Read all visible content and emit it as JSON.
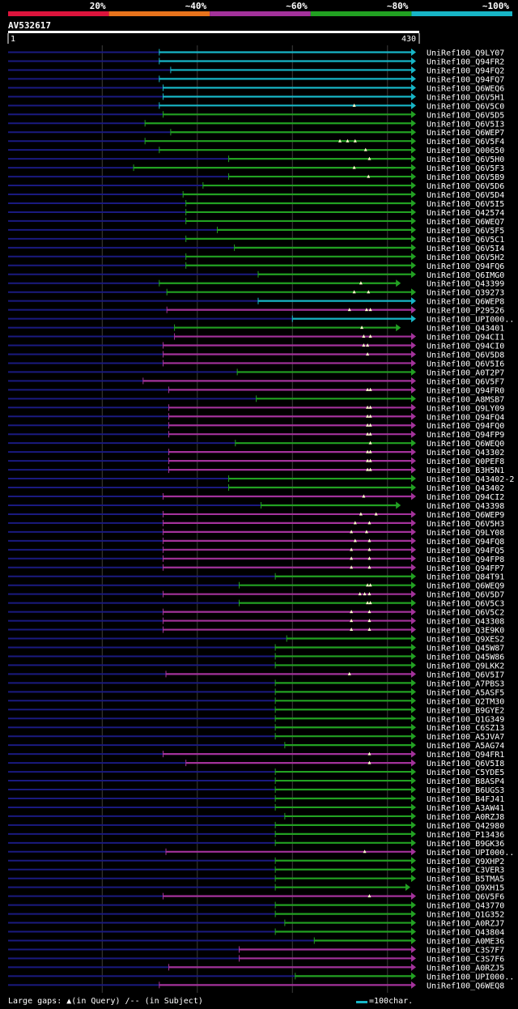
{
  "colors": {
    "background": "#000000",
    "bin20": "#dc143c",
    "bin40": "#e8731c",
    "bin60": "#a3329b",
    "bin80": "#22a122",
    "bin100": "#17b5c6",
    "query_line": "#1a1a80",
    "grid": "#3c3c3c",
    "gap_mark": "#ffffcc"
  },
  "legend": [
    {
      "label": "20%",
      "color_key": "bin20"
    },
    {
      "label": "~40%",
      "color_key": "bin40"
    },
    {
      "label": "~60%",
      "color_key": "bin60"
    },
    {
      "label": "~80%",
      "color_key": "bin80"
    },
    {
      "label": "~100%",
      "color_key": "bin100"
    }
  ],
  "query": {
    "name": "AV532617",
    "start": "1",
    "end": "430",
    "length": 430
  },
  "footer": {
    "gaps_label": "Large gaps:",
    "gap_query": "▲(in Query)",
    "gap_subject": "/-- (in Subject)",
    "scale_label": "=100char."
  },
  "hits": [
    {
      "id": "UniRef100_Q9LY07",
      "c": "bin100",
      "s": 160,
      "e": 430,
      "g": []
    },
    {
      "id": "UniRef100_Q94FR2",
      "c": "bin100",
      "s": 160,
      "e": 430,
      "g": []
    },
    {
      "id": "UniRef100_Q94FQ2",
      "c": "bin100",
      "s": 172,
      "e": 430,
      "g": []
    },
    {
      "id": "UniRef100_Q94FQ7",
      "c": "bin100",
      "s": 160,
      "e": 430,
      "g": []
    },
    {
      "id": "UniRef100_Q6WEQ6",
      "c": "bin100",
      "s": 164,
      "e": 430,
      "g": []
    },
    {
      "id": "UniRef100_Q6V5H1",
      "c": "bin100",
      "s": 164,
      "e": 430,
      "g": []
    },
    {
      "id": "UniRef100_Q6V5C0",
      "c": "bin100",
      "s": 160,
      "e": 430,
      "g": [
        365
      ]
    },
    {
      "id": "UniRef100_Q6V5D5",
      "c": "bin80",
      "s": 164,
      "e": 430,
      "g": []
    },
    {
      "id": "UniRef100_Q6V5I3",
      "c": "bin80",
      "s": 145,
      "e": 430,
      "g": []
    },
    {
      "id": "UniRef100_Q6WEP7",
      "c": "bin80",
      "s": 172,
      "e": 430,
      "g": []
    },
    {
      "id": "UniRef100_Q6V5F4",
      "c": "bin80",
      "s": 145,
      "e": 430,
      "g": [
        350,
        358,
        366
      ]
    },
    {
      "id": "UniRef100_Q00650",
      "c": "bin80",
      "s": 160,
      "e": 430,
      "g": [
        377
      ]
    },
    {
      "id": "UniRef100_Q6V5H0",
      "c": "bin80",
      "s": 233,
      "e": 430,
      "g": [
        381
      ]
    },
    {
      "id": "UniRef100_Q6V5F3",
      "c": "bin80",
      "s": 133,
      "e": 430,
      "g": [
        365
      ]
    },
    {
      "id": "UniRef100_Q6V5B9",
      "c": "bin80",
      "s": 233,
      "e": 430,
      "g": [
        380
      ]
    },
    {
      "id": "UniRef100_Q6V5D6",
      "c": "bin80",
      "s": 206,
      "e": 430,
      "g": []
    },
    {
      "id": "UniRef100_Q6V5D4",
      "c": "bin80",
      "s": 185,
      "e": 430,
      "g": []
    },
    {
      "id": "UniRef100_Q6V5I5",
      "c": "bin80",
      "s": 188,
      "e": 430,
      "g": []
    },
    {
      "id": "UniRef100_Q42574",
      "c": "bin80",
      "s": 188,
      "e": 430,
      "g": []
    },
    {
      "id": "UniRef100_Q6WEQ7",
      "c": "bin80",
      "s": 188,
      "e": 430,
      "g": []
    },
    {
      "id": "UniRef100_Q6V5F5",
      "c": "bin80",
      "s": 221,
      "e": 430,
      "g": []
    },
    {
      "id": "UniRef100_Q6V5C1",
      "c": "bin80",
      "s": 188,
      "e": 430,
      "g": []
    },
    {
      "id": "UniRef100_Q6V5I4",
      "c": "bin80",
      "s": 239,
      "e": 430,
      "g": []
    },
    {
      "id": "UniRef100_Q6V5H2",
      "c": "bin80",
      "s": 188,
      "e": 430,
      "g": []
    },
    {
      "id": "UniRef100_Q94FQ6",
      "c": "bin80",
      "s": 188,
      "e": 430,
      "g": []
    },
    {
      "id": "UniRef100_Q6IMG0",
      "c": "bin80",
      "s": 264,
      "e": 430,
      "g": []
    },
    {
      "id": "UniRef100_Q43399",
      "c": "bin80",
      "s": 160,
      "e": 414,
      "g": [
        372
      ]
    },
    {
      "id": "UniRef100_Q39273",
      "c": "bin80",
      "s": 168,
      "e": 430,
      "g": [
        365,
        380
      ]
    },
    {
      "id": "UniRef100_Q6WEP8",
      "c": "bin100",
      "s": 264,
      "e": 430,
      "g": []
    },
    {
      "id": "UniRef100_P29526",
      "c": "bin60",
      "s": 168,
      "e": 430,
      "g": [
        360,
        378,
        382
      ]
    },
    {
      "id": "UniRef100_UPI000..",
      "c": "bin100",
      "s": 300,
      "e": 430,
      "g": []
    },
    {
      "id": "UniRef100_Q43401",
      "c": "bin80",
      "s": 176,
      "e": 414,
      "g": [
        373
      ]
    },
    {
      "id": "UniRef100_Q94CI1",
      "c": "bin60",
      "s": 176,
      "e": 430,
      "g": [
        375,
        382
      ]
    },
    {
      "id": "UniRef100_Q94CI0",
      "c": "bin60",
      "s": 164,
      "e": 430,
      "g": [
        375,
        379
      ]
    },
    {
      "id": "UniRef100_Q6V5D8",
      "c": "bin60",
      "s": 164,
      "e": 430,
      "g": [
        379
      ]
    },
    {
      "id": "UniRef100_Q6V5I6",
      "c": "bin60",
      "s": 164,
      "e": 430,
      "g": []
    },
    {
      "id": "UniRef100_A0T2P7",
      "c": "bin80",
      "s": 242,
      "e": 430,
      "g": []
    },
    {
      "id": "UniRef100_Q6V5F7",
      "c": "bin60",
      "s": 143,
      "e": 430,
      "g": []
    },
    {
      "id": "UniRef100_Q94FR0",
      "c": "bin60",
      "s": 170,
      "e": 430,
      "g": [
        379,
        382
      ]
    },
    {
      "id": "UniRef100_A8MSB7",
      "c": "bin80",
      "s": 262,
      "e": 430,
      "g": []
    },
    {
      "id": "UniRef100_Q9LY09",
      "c": "bin60",
      "s": 170,
      "e": 430,
      "g": [
        379,
        382
      ]
    },
    {
      "id": "UniRef100_Q94FQ4",
      "c": "bin60",
      "s": 170,
      "e": 430,
      "g": [
        379,
        382
      ]
    },
    {
      "id": "UniRef100_Q94FQ0",
      "c": "bin60",
      "s": 170,
      "e": 430,
      "g": [
        379,
        382
      ]
    },
    {
      "id": "UniRef100_Q94FP9",
      "c": "bin60",
      "s": 170,
      "e": 430,
      "g": [
        379,
        382
      ]
    },
    {
      "id": "UniRef100_Q6WEQ0",
      "c": "bin80",
      "s": 240,
      "e": 430,
      "g": [
        382
      ]
    },
    {
      "id": "UniRef100_Q43302",
      "c": "bin60",
      "s": 170,
      "e": 430,
      "g": [
        379,
        382
      ]
    },
    {
      "id": "UniRef100_Q0PEF8",
      "c": "bin60",
      "s": 170,
      "e": 430,
      "g": [
        379,
        382
      ]
    },
    {
      "id": "UniRef100_B3H5N1",
      "c": "bin60",
      "s": 170,
      "e": 430,
      "g": [
        379,
        382
      ]
    },
    {
      "id": "UniRef100_Q43402-2",
      "c": "bin80",
      "s": 233,
      "e": 430,
      "g": []
    },
    {
      "id": "UniRef100_Q43402",
      "c": "bin80",
      "s": 233,
      "e": 430,
      "g": []
    },
    {
      "id": "UniRef100_Q94CI2",
      "c": "bin60",
      "s": 164,
      "e": 430,
      "g": [
        375
      ]
    },
    {
      "id": "UniRef100_Q43398",
      "c": "bin80",
      "s": 267,
      "e": 414,
      "g": []
    },
    {
      "id": "UniRef100_Q6WEP9",
      "c": "bin60",
      "s": 164,
      "e": 430,
      "g": [
        372,
        388
      ]
    },
    {
      "id": "UniRef100_Q6V5H3",
      "c": "bin60",
      "s": 164,
      "e": 430,
      "g": [
        366,
        381
      ]
    },
    {
      "id": "UniRef100_Q9LY08",
      "c": "bin60",
      "s": 164,
      "e": 430,
      "g": [
        362,
        378
      ]
    },
    {
      "id": "UniRef100_Q94FQ8",
      "c": "bin60",
      "s": 164,
      "e": 430,
      "g": [
        366,
        381
      ]
    },
    {
      "id": "UniRef100_Q94FQ5",
      "c": "bin60",
      "s": 164,
      "e": 430,
      "g": [
        362,
        381
      ]
    },
    {
      "id": "UniRef100_Q94FP8",
      "c": "bin60",
      "s": 164,
      "e": 430,
      "g": [
        362,
        381
      ]
    },
    {
      "id": "UniRef100_Q94FP7",
      "c": "bin60",
      "s": 164,
      "e": 430,
      "g": [
        362,
        381
      ]
    },
    {
      "id": "UniRef100_Q84T91",
      "c": "bin80",
      "s": 282,
      "e": 430,
      "g": []
    },
    {
      "id": "UniRef100_Q6WEQ9",
      "c": "bin80",
      "s": 244,
      "e": 430,
      "g": [
        379,
        382
      ]
    },
    {
      "id": "UniRef100_Q6V5D7",
      "c": "bin60",
      "s": 164,
      "e": 430,
      "g": [
        371,
        376,
        381
      ]
    },
    {
      "id": "UniRef100_Q6V5C3",
      "c": "bin80",
      "s": 244,
      "e": 430,
      "g": [
        379,
        382
      ]
    },
    {
      "id": "UniRef100_Q6V5C2",
      "c": "bin60",
      "s": 164,
      "e": 430,
      "g": [
        362,
        381
      ]
    },
    {
      "id": "UniRef100_Q43308",
      "c": "bin60",
      "s": 164,
      "e": 430,
      "g": [
        362,
        381
      ]
    },
    {
      "id": "UniRef100_Q3E9K0",
      "c": "bin60",
      "s": 164,
      "e": 430,
      "g": [
        362,
        381
      ]
    },
    {
      "id": "UniRef100_Q9XES2",
      "c": "bin80",
      "s": 294,
      "e": 430,
      "g": []
    },
    {
      "id": "UniRef100_Q45W87",
      "c": "bin80",
      "s": 282,
      "e": 430,
      "g": []
    },
    {
      "id": "UniRef100_Q45W86",
      "c": "bin80",
      "s": 282,
      "e": 430,
      "g": []
    },
    {
      "id": "UniRef100_Q9LKK2",
      "c": "bin80",
      "s": 282,
      "e": 430,
      "g": []
    },
    {
      "id": "UniRef100_Q6V5I7",
      "c": "bin60",
      "s": 167,
      "e": 430,
      "g": [
        360
      ]
    },
    {
      "id": "UniRef100_A7PBS3",
      "c": "bin80",
      "s": 282,
      "e": 430,
      "g": []
    },
    {
      "id": "UniRef100_A5ASF5",
      "c": "bin80",
      "s": 282,
      "e": 430,
      "g": []
    },
    {
      "id": "UniRef100_Q2TM30",
      "c": "bin80",
      "s": 282,
      "e": 430,
      "g": []
    },
    {
      "id": "UniRef100_B9GYE2",
      "c": "bin80",
      "s": 282,
      "e": 430,
      "g": []
    },
    {
      "id": "UniRef100_Q1G349",
      "c": "bin80",
      "s": 282,
      "e": 430,
      "g": []
    },
    {
      "id": "UniRef100_C6SZ13",
      "c": "bin80",
      "s": 282,
      "e": 430,
      "g": []
    },
    {
      "id": "UniRef100_A5JVA7",
      "c": "bin80",
      "s": 282,
      "e": 430,
      "g": []
    },
    {
      "id": "UniRef100_A5AG74",
      "c": "bin80",
      "s": 292,
      "e": 430,
      "g": []
    },
    {
      "id": "UniRef100_Q94FR1",
      "c": "bin60",
      "s": 164,
      "e": 430,
      "g": [
        381
      ]
    },
    {
      "id": "UniRef100_Q6V5I8",
      "c": "bin60",
      "s": 188,
      "e": 430,
      "g": [
        381
      ]
    },
    {
      "id": "UniRef100_C5YDE5",
      "c": "bin80",
      "s": 282,
      "e": 430,
      "g": []
    },
    {
      "id": "UniRef100_B8ASP4",
      "c": "bin80",
      "s": 282,
      "e": 430,
      "g": []
    },
    {
      "id": "UniRef100_B6UGS3",
      "c": "bin80",
      "s": 282,
      "e": 430,
      "g": []
    },
    {
      "id": "UniRef100_B4FJ41",
      "c": "bin80",
      "s": 282,
      "e": 430,
      "g": []
    },
    {
      "id": "UniRef100_A3AW41",
      "c": "bin80",
      "s": 282,
      "e": 430,
      "g": []
    },
    {
      "id": "UniRef100_A0RZJ8",
      "c": "bin80",
      "s": 292,
      "e": 430,
      "g": []
    },
    {
      "id": "UniRef100_Q42980",
      "c": "bin80",
      "s": 282,
      "e": 430,
      "g": []
    },
    {
      "id": "UniRef100_P13436",
      "c": "bin80",
      "s": 282,
      "e": 430,
      "g": []
    },
    {
      "id": "UniRef100_B9GK36",
      "c": "bin80",
      "s": 282,
      "e": 430,
      "g": []
    },
    {
      "id": "UniRef100_UPI000..",
      "c": "bin60",
      "s": 167,
      "e": 430,
      "g": [
        376
      ]
    },
    {
      "id": "UniRef100_Q9XHP2",
      "c": "bin80",
      "s": 282,
      "e": 430,
      "g": []
    },
    {
      "id": "UniRef100_C3VER3",
      "c": "bin80",
      "s": 282,
      "e": 430,
      "g": []
    },
    {
      "id": "UniRef100_B5TMA5",
      "c": "bin80",
      "s": 282,
      "e": 430,
      "g": []
    },
    {
      "id": "UniRef100_Q9XH15",
      "c": "bin80",
      "s": 282,
      "e": 424,
      "g": []
    },
    {
      "id": "UniRef100_Q6V5F6",
      "c": "bin60",
      "s": 164,
      "e": 430,
      "g": [
        381
      ]
    },
    {
      "id": "UniRef100_Q43770",
      "c": "bin80",
      "s": 282,
      "e": 430,
      "g": []
    },
    {
      "id": "UniRef100_Q1G352",
      "c": "bin80",
      "s": 282,
      "e": 430,
      "g": []
    },
    {
      "id": "UniRef100_A0RZJ7",
      "c": "bin80",
      "s": 292,
      "e": 430,
      "g": []
    },
    {
      "id": "UniRef100_Q43804",
      "c": "bin80",
      "s": 282,
      "e": 430,
      "g": []
    },
    {
      "id": "UniRef100_A0ME36",
      "c": "bin80",
      "s": 323,
      "e": 430,
      "g": []
    },
    {
      "id": "UniRef100_C3S7F7",
      "c": "bin60",
      "s": 244,
      "e": 430,
      "g": []
    },
    {
      "id": "UniRef100_C3S7F6",
      "c": "bin60",
      "s": 244,
      "e": 430,
      "g": []
    },
    {
      "id": "UniRef100_A0RZJ5",
      "c": "bin60",
      "s": 170,
      "e": 430,
      "g": []
    },
    {
      "id": "UniRef100_UPI000..",
      "c": "bin80",
      "s": 303,
      "e": 430,
      "g": []
    },
    {
      "id": "UniRef100_Q6WEQ8",
      "c": "bin60",
      "s": 160,
      "e": 430,
      "g": []
    }
  ]
}
